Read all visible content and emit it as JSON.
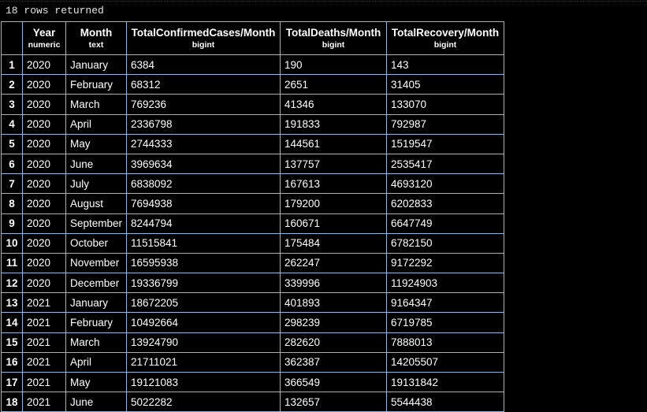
{
  "status": {
    "rows_returned": "18 rows returned"
  },
  "table": {
    "columns": [
      {
        "name": "Year",
        "type": "numeric"
      },
      {
        "name": "Month",
        "type": "text"
      },
      {
        "name": "TotalConfirmedCases/Month",
        "type": "bigint"
      },
      {
        "name": "TotalDeaths/Month",
        "type": "bigint"
      },
      {
        "name": "TotalRecovery/Month",
        "type": "bigint"
      }
    ],
    "rows": [
      {
        "n": "1",
        "year": "2020",
        "month": "January",
        "confirmed": "6384",
        "deaths": "190",
        "recovery": "143"
      },
      {
        "n": "2",
        "year": "2020",
        "month": "February",
        "confirmed": "68312",
        "deaths": "2651",
        "recovery": "31405"
      },
      {
        "n": "3",
        "year": "2020",
        "month": "March",
        "confirmed": "769236",
        "deaths": "41346",
        "recovery": "133070"
      },
      {
        "n": "4",
        "year": "2020",
        "month": "April",
        "confirmed": "2336798",
        "deaths": "191833",
        "recovery": "792987"
      },
      {
        "n": "5",
        "year": "2020",
        "month": "May",
        "confirmed": "2744333",
        "deaths": "144561",
        "recovery": "1519547"
      },
      {
        "n": "6",
        "year": "2020",
        "month": "June",
        "confirmed": "3969634",
        "deaths": "137757",
        "recovery": "2535417"
      },
      {
        "n": "7",
        "year": "2020",
        "month": "July",
        "confirmed": "6838092",
        "deaths": "167613",
        "recovery": "4693120"
      },
      {
        "n": "8",
        "year": "2020",
        "month": "August",
        "confirmed": "7694938",
        "deaths": "179200",
        "recovery": "6202833"
      },
      {
        "n": "9",
        "year": "2020",
        "month": "September",
        "confirmed": "8244794",
        "deaths": "160671",
        "recovery": "6647749"
      },
      {
        "n": "10",
        "year": "2020",
        "month": "October",
        "confirmed": "11515841",
        "deaths": "175484",
        "recovery": "6782150"
      },
      {
        "n": "11",
        "year": "2020",
        "month": "November",
        "confirmed": "16595938",
        "deaths": "262247",
        "recovery": "9172292"
      },
      {
        "n": "12",
        "year": "2020",
        "month": "December",
        "confirmed": "19336799",
        "deaths": "339996",
        "recovery": "11924903"
      },
      {
        "n": "13",
        "year": "2021",
        "month": "January",
        "confirmed": "18672205",
        "deaths": "401893",
        "recovery": "9164347"
      },
      {
        "n": "14",
        "year": "2021",
        "month": "February",
        "confirmed": "10492664",
        "deaths": "298239",
        "recovery": "6719785"
      },
      {
        "n": "15",
        "year": "2021",
        "month": "March",
        "confirmed": "13924790",
        "deaths": "282620",
        "recovery": "7888013"
      },
      {
        "n": "16",
        "year": "2021",
        "month": "April",
        "confirmed": "21711021",
        "deaths": "362387",
        "recovery": "14205507"
      },
      {
        "n": "17",
        "year": "2021",
        "month": "May",
        "confirmed": "19121083",
        "deaths": "366549",
        "recovery": "19131842"
      },
      {
        "n": "18",
        "year": "2021",
        "month": "June",
        "confirmed": "5022282",
        "deaths": "132657",
        "recovery": "5544438"
      }
    ]
  },
  "colors": {
    "background": "#000000",
    "text": "#ffffff",
    "grid_border": "#8fb8de"
  }
}
